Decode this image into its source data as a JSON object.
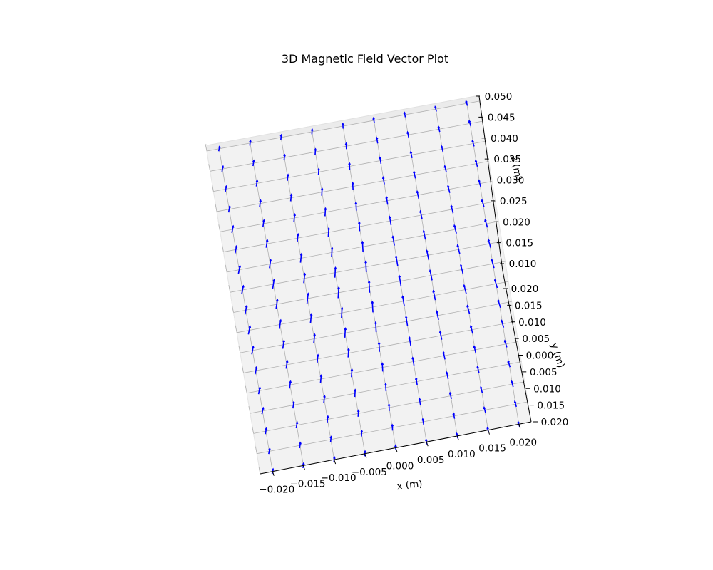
{
  "chart_data": {
    "type": "quiver3d",
    "title": "3D Magnetic Field Vector Plot",
    "xlabel": "x (m)",
    "ylabel": "y (m)",
    "zlabel": "z (m)",
    "xlim": [
      -0.022,
      0.022
    ],
    "ylim": [
      -0.02,
      0.02
    ],
    "zlim": [
      0.01,
      0.05
    ],
    "x_ticks": [
      "−0.020",
      "−0.015",
      "−0.010",
      "−0.005",
      "0.000",
      "0.005",
      "0.010",
      "0.015",
      "0.020"
    ],
    "y_ticks": [
      "0.020",
      "0.015",
      "0.010",
      "0.005",
      "0.000",
      "0.005",
      "0.010",
      "0.015",
      "0.020"
    ],
    "z_ticks": [
      "0.050",
      "0.045",
      "0.040",
      "0.035",
      "0.030",
      "0.025",
      "0.020",
      "0.015",
      "0.010"
    ],
    "grid": true,
    "vector_color": "#0000ff",
    "grid_x": [
      -0.02,
      -0.015,
      -0.01,
      -0.005,
      0.0,
      0.005,
      0.01,
      0.015,
      0.02
    ],
    "grid_y": [
      -0.02,
      -0.0175,
      -0.015,
      -0.0125,
      -0.01,
      -0.0075,
      -0.005,
      -0.0025,
      0.0,
      0.0025,
      0.005,
      0.0075,
      0.01,
      0.0125,
      0.015,
      0.0175,
      0.02
    ],
    "field": "dipole-like field along z; vectors converge toward x = 0 and tilt outward with |x|"
  }
}
